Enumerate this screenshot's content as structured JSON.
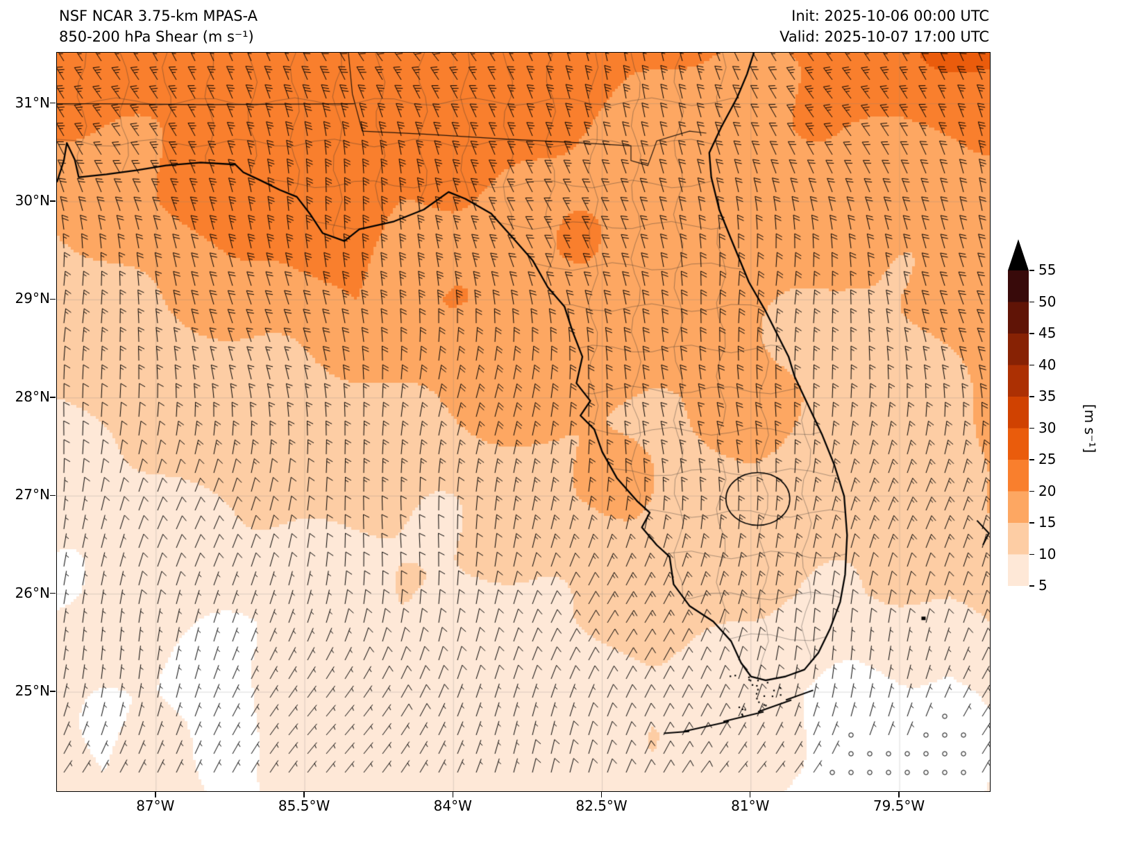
{
  "header": {
    "model": "NSF NCAR 3.75-km MPAS-A",
    "product": "850-200 hPa Shear (m s⁻¹)",
    "init": "Init: 2025-10-06 00:00 UTC",
    "valid": "Valid: 2025-10-07 17:00 UTC"
  },
  "axes": {
    "lat_ticks": [
      {
        "label": "31°N",
        "value": 31
      },
      {
        "label": "30°N",
        "value": 30
      },
      {
        "label": "29°N",
        "value": 29
      },
      {
        "label": "28°N",
        "value": 28
      },
      {
        "label": "27°N",
        "value": 27
      },
      {
        "label": "26°N",
        "value": 26
      },
      {
        "label": "25°N",
        "value": 25
      }
    ],
    "lon_ticks": [
      {
        "label": "87°W",
        "value": -87
      },
      {
        "label": "85.5°W",
        "value": -85.5
      },
      {
        "label": "84°W",
        "value": -84
      },
      {
        "label": "82.5°W",
        "value": -82.5
      },
      {
        "label": "81°W",
        "value": -81
      },
      {
        "label": "79.5°W",
        "value": -79.5
      }
    ],
    "lat_range": [
      23.99,
      31.52
    ],
    "lon_range": [
      -88.0,
      -78.59
    ]
  },
  "colorbar": {
    "unit": "[m s⁻¹]",
    "tick_values": [
      5,
      10,
      15,
      20,
      25,
      30,
      35,
      40,
      45,
      50,
      55
    ],
    "colors": [
      "#ffffff",
      "#fee8d7",
      "#fdcda4",
      "#fda762",
      "#f97f2d",
      "#ea5c0c",
      "#d04201",
      "#ac3003",
      "#872204",
      "#601406",
      "#380a0a",
      "#000000"
    ]
  },
  "chart_data": {
    "type": "heatmap",
    "title": "NSF NCAR 3.75-km MPAS-A",
    "subtitle": "850-200 hPa Shear (m s⁻¹)",
    "init_time": "2025-10-06 00:00 UTC",
    "valid_time": "2025-10-07 17:00 UTC",
    "unit": "m s⁻¹",
    "overlay": "wind shear barbs; calm points shown as open circles",
    "region": "Florida, southeastern US, Gulf of Mexico, western Atlantic",
    "colorbar_range": [
      5,
      55
    ],
    "colorbar_interval": 5,
    "grid_lat": [
      31.5,
      31,
      30,
      29,
      28,
      27,
      26,
      25,
      24
    ],
    "grid_lon": [
      -88,
      -87,
      -86,
      -85,
      -84,
      -83,
      -82,
      -81,
      -80,
      -79,
      -78.5
    ],
    "shear": [
      [
        21,
        22,
        23,
        24,
        23,
        22,
        21,
        20,
        21,
        25,
        27
      ],
      [
        20,
        21,
        23,
        23,
        22,
        21,
        20,
        19,
        19,
        22,
        24
      ],
      [
        17,
        19,
        21,
        22,
        21,
        19,
        18,
        17,
        16,
        17,
        19
      ],
      [
        13,
        15,
        18,
        20,
        20,
        18,
        17,
        16,
        15,
        16,
        17
      ],
      [
        10,
        11,
        13,
        15,
        16,
        16,
        15,
        15,
        14,
        15,
        16
      ],
      [
        8,
        9,
        10,
        11,
        12,
        14,
        14,
        14,
        13,
        14,
        15
      ],
      [
        6,
        7,
        7,
        8,
        9,
        10,
        12,
        12,
        11,
        10,
        11
      ],
      [
        6,
        6,
        5,
        6,
        7,
        8,
        9,
        8,
        4,
        3,
        6
      ],
      [
        7,
        6,
        5,
        6,
        7,
        8,
        8,
        6,
        2,
        2,
        5
      ]
    ]
  }
}
